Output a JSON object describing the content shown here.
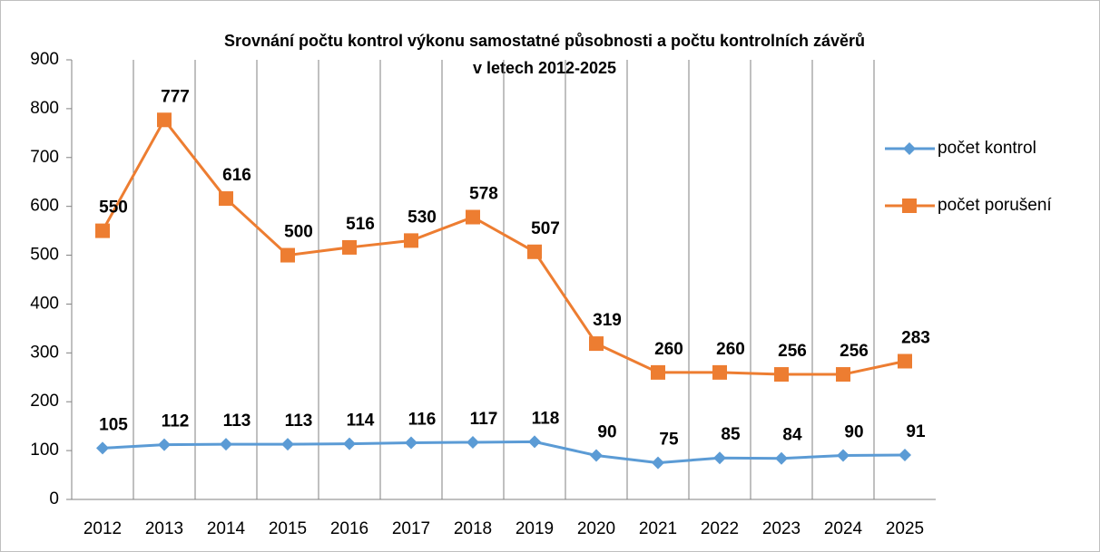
{
  "chart_data": {
    "type": "line",
    "title": [
      "Srovnání počtu kontrol výkonu samostatné působnosti a počtu kontrolních závěrů",
      "v letech  2012-2025"
    ],
    "categories": [
      "2012",
      "2013",
      "2014",
      "2015",
      "2016",
      "2017",
      "2018",
      "2019",
      "2020",
      "2021",
      "2022",
      "2023",
      "2024",
      "2025"
    ],
    "series": [
      {
        "name": "počet kontrol",
        "color": "#5b9bd5",
        "marker": "diamond",
        "values": [
          105,
          112,
          113,
          113,
          114,
          116,
          117,
          118,
          90,
          75,
          85,
          84,
          90,
          91
        ]
      },
      {
        "name": "počet porušení",
        "color": "#ed7d31",
        "marker": "square",
        "values": [
          550,
          777,
          616,
          500,
          516,
          530,
          578,
          507,
          319,
          260,
          260,
          256,
          256,
          283
        ]
      }
    ],
    "ylim": [
      0,
      900
    ],
    "yticks": [
      0,
      100,
      200,
      300,
      400,
      500,
      600,
      700,
      800,
      900
    ],
    "grid": "vertical",
    "legend": "right"
  }
}
